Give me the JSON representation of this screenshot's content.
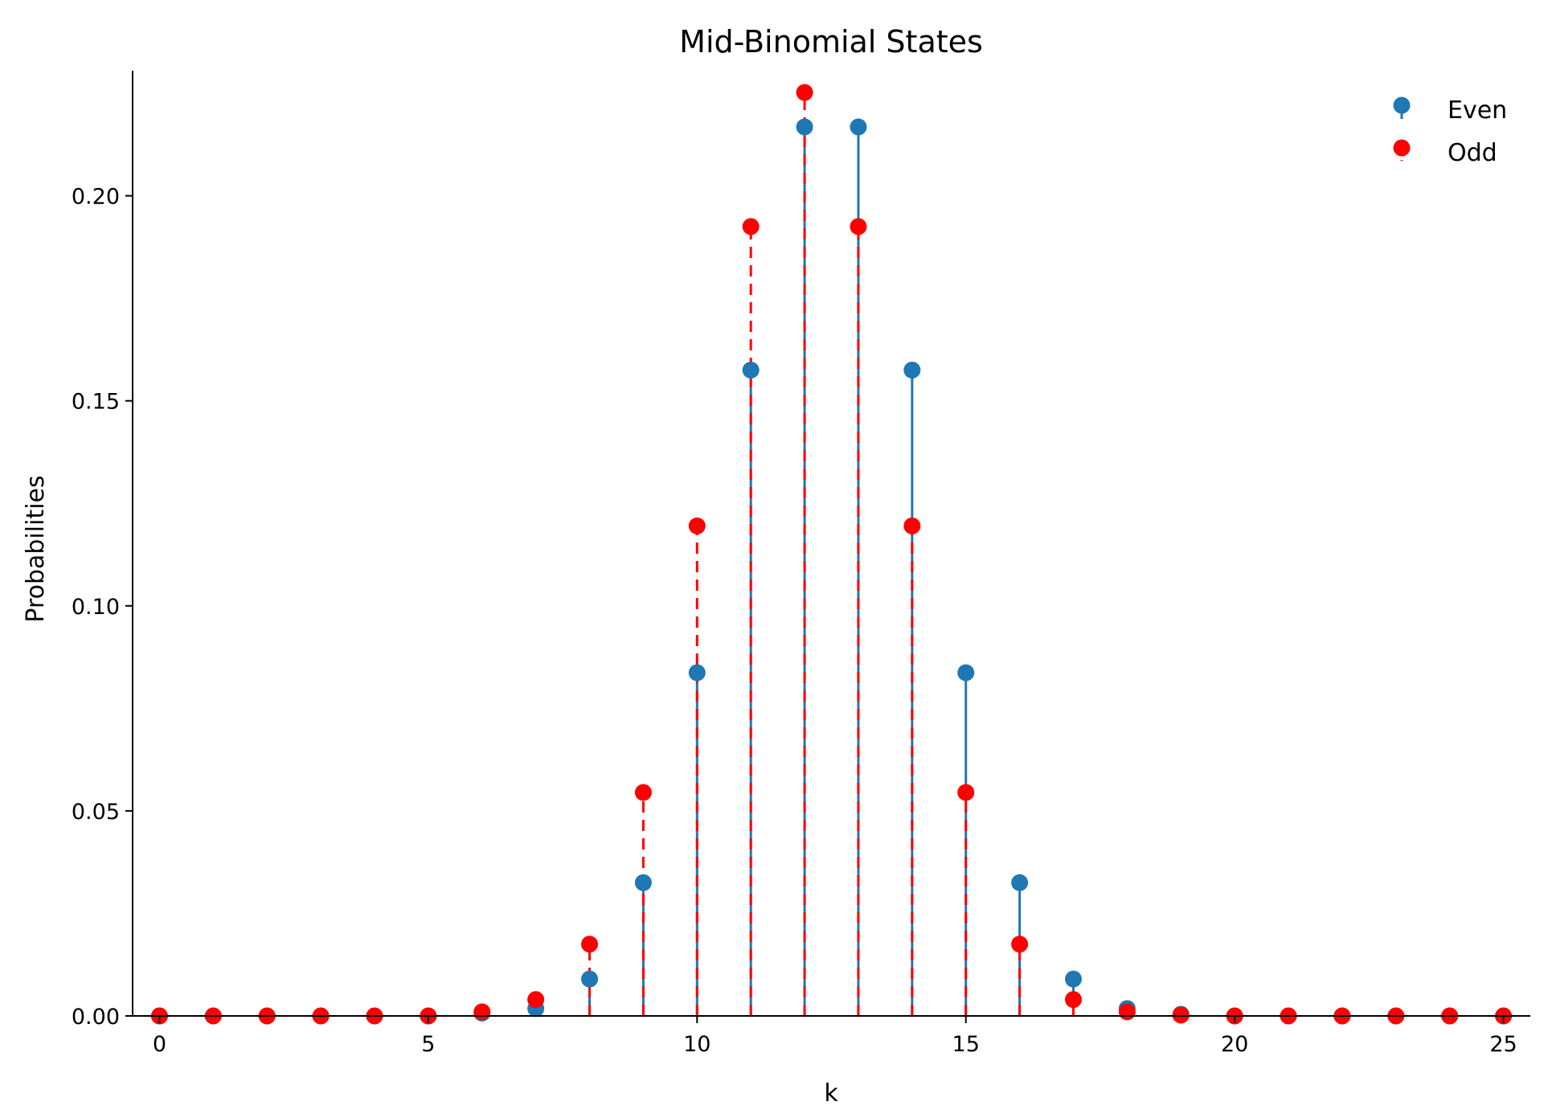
{
  "chart_data": {
    "type": "stem",
    "title": "Mid-Binomial States",
    "xlabel": "k",
    "ylabel": "Probabilities",
    "xlim": [
      -0.5,
      25.5
    ],
    "ylim": [
      0,
      0.2305
    ],
    "x_ticks": [
      0,
      5,
      10,
      15,
      20,
      25
    ],
    "y_ticks": [
      0.0,
      0.05,
      0.1,
      0.15,
      0.2
    ],
    "x_tick_labels": [
      "0",
      "5",
      "10",
      "15",
      "20",
      "25"
    ],
    "y_tick_labels": [
      "0.00",
      "0.05",
      "0.10",
      "0.15",
      "0.20"
    ],
    "grid": false,
    "legend_position": "top-right",
    "x": [
      0,
      1,
      2,
      3,
      4,
      5,
      6,
      7,
      8,
      9,
      10,
      11,
      12,
      13,
      14,
      15,
      16,
      17,
      18,
      19,
      20,
      21,
      22,
      23,
      24,
      25
    ],
    "series": [
      {
        "name": "Even",
        "color": "#1f77b4",
        "line_style": "solid",
        "values": [
          0,
          0,
          0,
          0,
          0,
          0,
          0.0007,
          0.0018,
          0.009,
          0.0325,
          0.0837,
          0.1575,
          0.2168,
          0.2168,
          0.1575,
          0.0837,
          0.0325,
          0.009,
          0.0018,
          0.0004,
          0,
          0,
          0,
          0,
          0,
          0
        ]
      },
      {
        "name": "Odd",
        "color": "#ff0000",
        "line_style": "dashed",
        "values": [
          0,
          0,
          0,
          0,
          0,
          0,
          0.001,
          0.004,
          0.0175,
          0.0545,
          0.1195,
          0.1925,
          0.2252,
          0.1925,
          0.1195,
          0.0545,
          0.0175,
          0.004,
          0.001,
          0.0002,
          0,
          0,
          0,
          0,
          0,
          0
        ]
      }
    ]
  }
}
